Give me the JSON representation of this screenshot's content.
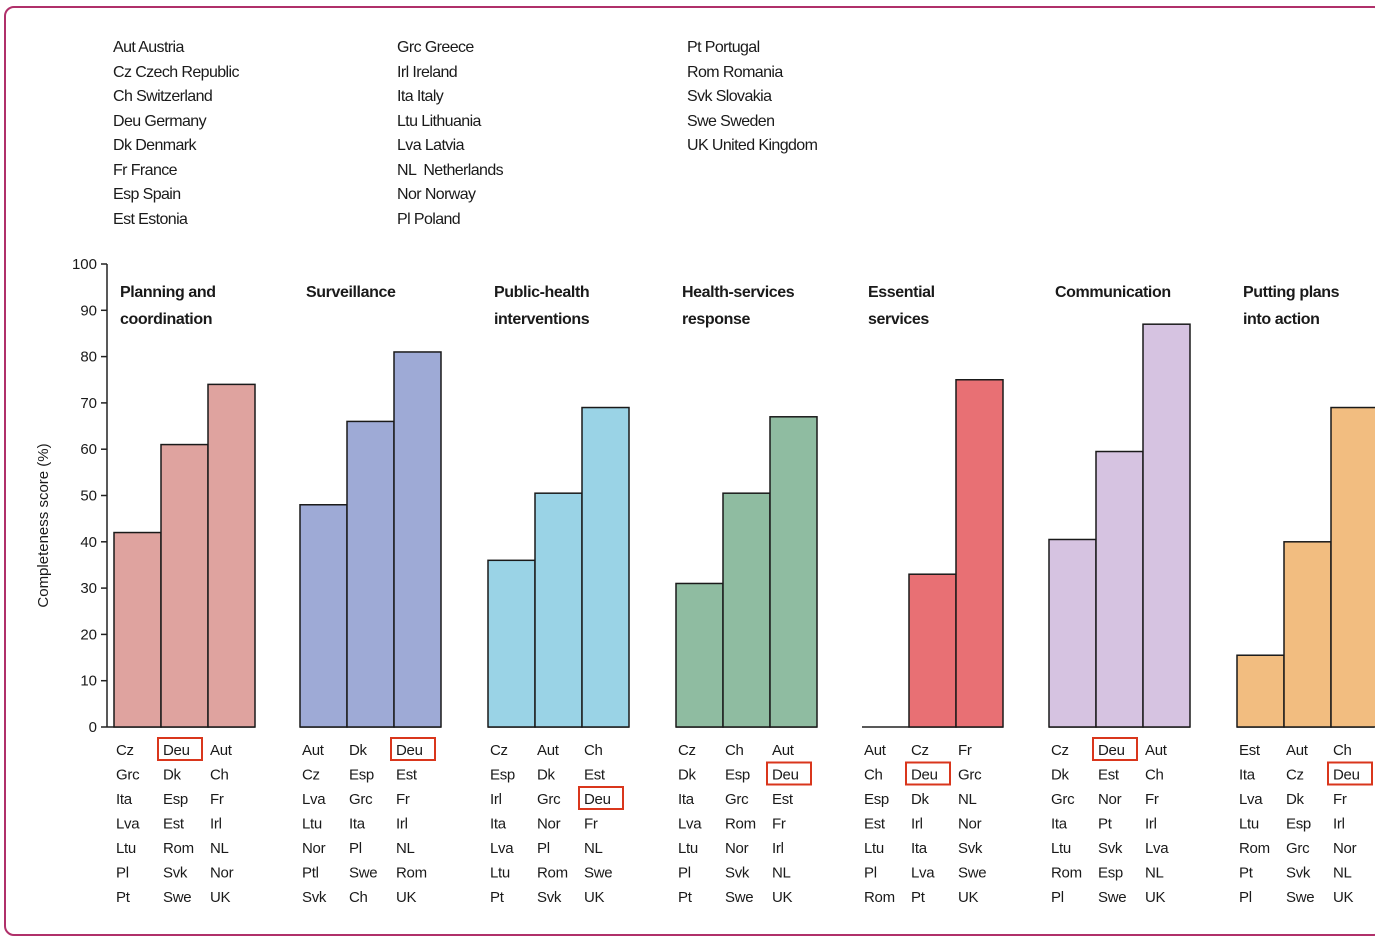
{
  "legend": {
    "columns": [
      [
        "Aut Austria",
        "Cz Czech Republic",
        "Ch Switzerland",
        "Deu Germany",
        "Dk Denmark",
        "Fr France",
        "Esp Spain",
        "Est Estonia"
      ],
      [
        "Grc Greece",
        "Irl Ireland",
        "Ita Italy",
        "Ltu Lithuania",
        "Lva Latvia",
        "NL  Netherlands",
        "Nor Norway",
        "Pl Poland"
      ],
      [
        "Pt Portugal",
        "Rom Romania",
        "Svk Slovakia",
        "Swe Sweden",
        "UK United Kingdom"
      ]
    ]
  },
  "colors": {
    "frame": "#b0306a",
    "highlight_box": "#d9361c"
  },
  "chart_data": {
    "type": "bar",
    "ylabel": "Completeness score (%)",
    "ylim": [
      0,
      100
    ],
    "yticks": [
      0,
      10,
      20,
      30,
      40,
      50,
      60,
      70,
      80,
      90,
      100
    ],
    "highlight": "Deu",
    "groups": [
      {
        "title": [
          "Planning and",
          "coordination"
        ],
        "color": "#dfa39f",
        "bars": [
          {
            "value": 42,
            "countries": [
              "Cz",
              "Grc",
              "Ita",
              "Lva",
              "Ltu",
              "Pl",
              "Pt"
            ]
          },
          {
            "value": 61,
            "countries": [
              "Deu",
              "Dk",
              "Esp",
              "Est",
              "Rom",
              "Svk",
              "Swe"
            ]
          },
          {
            "value": 74,
            "countries": [
              "Aut",
              "Ch",
              "Fr",
              "Irl",
              "NL",
              "Nor",
              "UK"
            ]
          }
        ]
      },
      {
        "title": [
          "Surveillance"
        ],
        "color": "#9eaad6",
        "bars": [
          {
            "value": 48,
            "countries": [
              "Aut",
              "Cz",
              "Lva",
              "Ltu",
              "Nor",
              "Ptl",
              "Svk"
            ]
          },
          {
            "value": 66,
            "countries": [
              "Dk",
              "Esp",
              "Grc",
              "Ita",
              "Pl",
              "Swe",
              "Ch"
            ]
          },
          {
            "value": 81,
            "countries": [
              "Deu",
              "Est",
              "Fr",
              "Irl",
              "NL",
              "Rom",
              "UK"
            ]
          }
        ]
      },
      {
        "title": [
          "Public-health",
          "interventions"
        ],
        "color": "#9ad3e6",
        "bars": [
          {
            "value": 36,
            "countries": [
              "Cz",
              "Esp",
              "Irl",
              "Ita",
              "Lva",
              "Ltu",
              "Pt"
            ]
          },
          {
            "value": 50.5,
            "countries": [
              "Aut",
              "Dk",
              "Grc",
              "Nor",
              "Pl",
              "Rom",
              "Svk"
            ]
          },
          {
            "value": 69,
            "countries": [
              "Ch",
              "Est",
              "Deu",
              "Fr",
              "NL",
              "Swe",
              "UK"
            ]
          }
        ]
      },
      {
        "title": [
          "Health-services",
          "response"
        ],
        "color": "#8fbca1",
        "bars": [
          {
            "value": 31,
            "countries": [
              "Cz",
              "Dk",
              "Ita",
              "Lva",
              "Ltu",
              "Pl",
              "Pt"
            ]
          },
          {
            "value": 50.5,
            "countries": [
              "Ch",
              "Esp",
              "Grc",
              "Rom",
              "Nor",
              "Svk",
              "Swe"
            ]
          },
          {
            "value": 67,
            "countries": [
              "Aut",
              "Deu",
              "Est",
              "Fr",
              "Irl",
              "NL",
              "UK"
            ]
          }
        ]
      },
      {
        "title": [
          "Essential",
          "services"
        ],
        "color": "#e87074",
        "bars": [
          {
            "value": 0,
            "countries": [
              "Aut",
              "Ch",
              "Esp",
              "Est",
              "Ltu",
              "Pl",
              "Rom"
            ]
          },
          {
            "value": 33,
            "countries": [
              "Cz",
              "Deu",
              "Dk",
              "Irl",
              "Ita",
              "Lva",
              "Pt"
            ]
          },
          {
            "value": 75,
            "countries": [
              "Fr",
              "Grc",
              "NL",
              "Nor",
              "Svk",
              "Swe",
              "UK"
            ]
          }
        ]
      },
      {
        "title": [
          "Communication"
        ],
        "color": "#d6c3e1",
        "bars": [
          {
            "value": 40.5,
            "countries": [
              "Cz",
              "Dk",
              "Grc",
              "Ita",
              "Ltu",
              "Rom",
              "Pl"
            ]
          },
          {
            "value": 59.5,
            "countries": [
              "Deu",
              "Est",
              "Nor",
              "Pt",
              "Svk",
              "Esp",
              "Swe"
            ]
          },
          {
            "value": 87,
            "countries": [
              "Aut",
              "Ch",
              "Fr",
              "Irl",
              "Lva",
              "NL",
              "UK"
            ]
          }
        ]
      },
      {
        "title": [
          "Putting plans",
          "into action"
        ],
        "color": "#f2bd80",
        "bars": [
          {
            "value": 15.5,
            "countries": [
              "Est",
              "Ita",
              "Lva",
              "Ltu",
              "Rom",
              "Pt",
              "Pl"
            ]
          },
          {
            "value": 40,
            "countries": [
              "Aut",
              "Cz",
              "Dk",
              "Esp",
              "Grc",
              "Svk",
              "Swe"
            ]
          },
          {
            "value": 69,
            "countries": [
              "Ch",
              "Deu",
              "Fr",
              "Irl",
              "Nor",
              "NL",
              "UK"
            ]
          }
        ]
      }
    ]
  }
}
